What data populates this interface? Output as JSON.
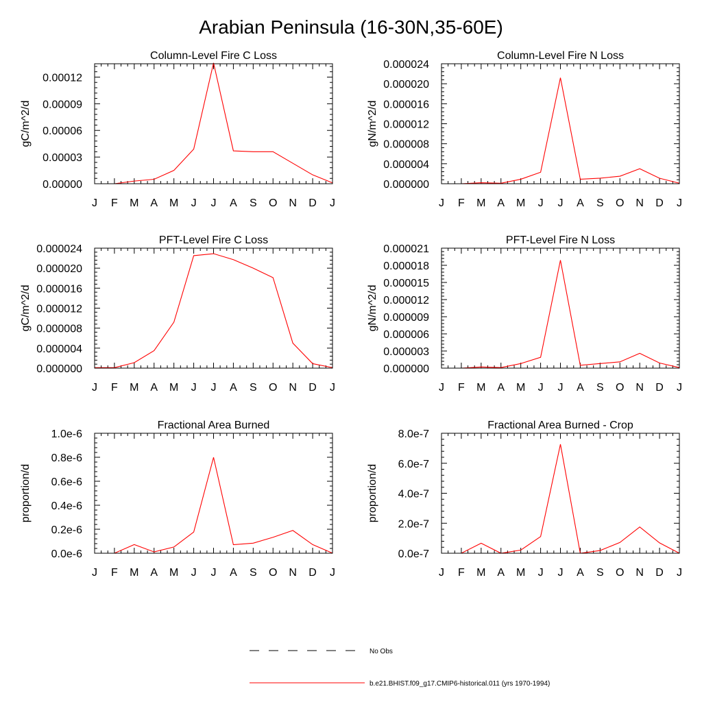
{
  "page": {
    "title": "Arabian Peninsula (16-30N,35-60E)"
  },
  "legend": {
    "obs_label": "No Obs",
    "model_label": "b.e21.BHIST.f09_g17.CMIP6-historical.011 (yrs 1970-1994)",
    "obs_color": "#000000",
    "model_color": "#ff0000"
  },
  "chart_data": [
    {
      "type": "line",
      "title": "Column-Level Fire C Loss",
      "ylabel": "gC/m^2/d",
      "categories": [
        "J",
        "F",
        "M",
        "A",
        "M",
        "J",
        "J",
        "A",
        "S",
        "O",
        "N",
        "D",
        "J"
      ],
      "ylim": [
        0,
        0.000135
      ],
      "yticks": [
        0,
        3e-05,
        6e-05,
        9e-05,
        0.00012
      ],
      "ytick_labels": [
        "0.00000",
        "0.00003",
        "0.00006",
        "0.00009",
        "0.00012"
      ],
      "series": [
        {
          "color": "#ff0000",
          "values": [
            0,
            0,
            3e-06,
            5e-06,
            1.5e-05,
            3.9e-05,
            0.000136,
            3.7e-05,
            3.6e-05,
            3.6e-05,
            2.3e-05,
            1e-05,
            1e-06
          ]
        }
      ]
    },
    {
      "type": "line",
      "title": "Column-Level Fire N Loss",
      "ylabel": "gN/m^2/d",
      "categories": [
        "J",
        "F",
        "M",
        "A",
        "M",
        "J",
        "J",
        "A",
        "S",
        "O",
        "N",
        "D",
        "J"
      ],
      "ylim": [
        0,
        2.4e-05
      ],
      "yticks": [
        0,
        4e-06,
        8e-06,
        1.2e-05,
        1.6e-05,
        2e-05,
        2.4e-05
      ],
      "ytick_labels": [
        "0.000000",
        "0.000004",
        "0.000008",
        "0.000012",
        "0.000016",
        "0.000020",
        "0.000024"
      ],
      "series": [
        {
          "color": "#ff0000",
          "values": [
            0,
            0,
            2e-07,
            1e-07,
            9e-07,
            2.3e-06,
            2.12e-05,
            9e-07,
            1.1e-06,
            1.5e-06,
            3e-06,
            1.1e-06,
            1e-07
          ]
        }
      ]
    },
    {
      "type": "line",
      "title": "PFT-Level Fire C Loss",
      "ylabel": "gC/m^2/d",
      "categories": [
        "J",
        "F",
        "M",
        "A",
        "M",
        "J",
        "J",
        "A",
        "S",
        "O",
        "N",
        "D",
        "J"
      ],
      "ylim": [
        0,
        2.4e-05
      ],
      "yticks": [
        0,
        4e-06,
        8e-06,
        1.2e-05,
        1.6e-05,
        2e-05,
        2.4e-05
      ],
      "ytick_labels": [
        "0.000000",
        "0.000004",
        "0.000008",
        "0.000012",
        "0.000016",
        "0.000020",
        "0.000024"
      ],
      "series": [
        {
          "color": "#ff0000",
          "values": [
            1e-07,
            1e-07,
            1.1e-06,
            3.5e-06,
            9.2e-06,
            2.25e-05,
            2.29e-05,
            2.17e-05,
            2e-05,
            1.81e-05,
            5e-06,
            9e-07,
            1e-07
          ]
        }
      ]
    },
    {
      "type": "line",
      "title": "PFT-Level Fire N Loss",
      "ylabel": "gN/m^2/d",
      "categories": [
        "J",
        "F",
        "M",
        "A",
        "M",
        "J",
        "J",
        "A",
        "S",
        "O",
        "N",
        "D",
        "J"
      ],
      "ylim": [
        0,
        2.1e-05
      ],
      "yticks": [
        0,
        3e-06,
        6e-06,
        9e-06,
        1.2e-05,
        1.5e-05,
        1.8e-05,
        2.1e-05
      ],
      "ytick_labels": [
        "0.000000",
        "0.000003",
        "0.000006",
        "0.000009",
        "0.000012",
        "0.000015",
        "0.000018",
        "0.000021"
      ],
      "series": [
        {
          "color": "#ff0000",
          "values": [
            0,
            0,
            2e-07,
            1e-07,
            8e-07,
            1.9e-06,
            1.89e-05,
            5e-07,
            8e-07,
            1.1e-06,
            2.6e-06,
            9e-07,
            1e-07
          ]
        }
      ]
    },
    {
      "type": "line",
      "title": "Fractional Area Burned",
      "ylabel": "proportion/d",
      "categories": [
        "J",
        "F",
        "M",
        "A",
        "M",
        "J",
        "J",
        "A",
        "S",
        "O",
        "N",
        "D",
        "J"
      ],
      "ylim": [
        0,
        1e-06
      ],
      "yticks": [
        0,
        2e-07,
        4e-07,
        6e-07,
        8e-07,
        1e-06
      ],
      "ytick_labels": [
        "0.0e-6",
        "0.2e-6",
        "0.4e-6",
        "0.6e-6",
        "0.8e-6",
        "1.0e-6"
      ],
      "series": [
        {
          "color": "#ff0000",
          "values": [
            0,
            0,
            7.2e-08,
            1.1e-08,
            5.2e-08,
            1.77e-07,
            7.99e-07,
            7.1e-08,
            8.4e-08,
            1.33e-07,
            1.9e-07,
            7.2e-08,
            1e-09
          ]
        }
      ]
    },
    {
      "type": "line",
      "title": "Fractional Area Burned - Crop",
      "ylabel": "proportion/d",
      "categories": [
        "J",
        "F",
        "M",
        "A",
        "M",
        "J",
        "J",
        "A",
        "S",
        "O",
        "N",
        "D",
        "J"
      ],
      "ylim": [
        0,
        8e-07
      ],
      "yticks": [
        0,
        2e-07,
        4e-07,
        6e-07,
        8e-07
      ],
      "ytick_labels": [
        "0.0e-7",
        "2.0e-7",
        "4.0e-7",
        "6.0e-7",
        "8.0e-7"
      ],
      "series": [
        {
          "color": "#ff0000",
          "values": [
            0,
            0,
            6.7e-08,
            0,
            2.1e-08,
            1.11e-07,
            7.27e-07,
            0,
            1.8e-08,
            7.2e-08,
            1.75e-07,
            6.9e-08,
            0
          ]
        }
      ]
    }
  ]
}
